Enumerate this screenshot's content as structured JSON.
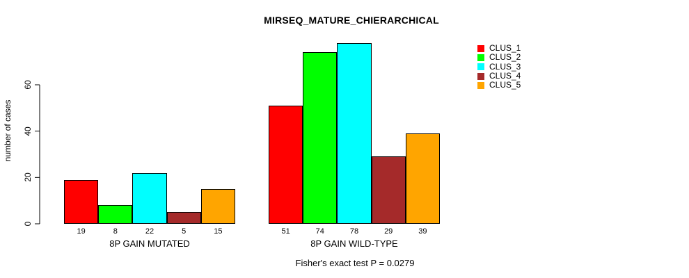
{
  "title": "MIRSEQ_MATURE_CHIERARCHICAL",
  "footer": "Fisher's exact test P = 0.0279",
  "chart_data": {
    "type": "bar",
    "title": "MIRSEQ_MATURE_CHIERARCHICAL",
    "xlabel": "",
    "ylabel": "number of cases",
    "yticks": [
      0,
      20,
      40,
      60
    ],
    "ylim": [
      0,
      80
    ],
    "grid": false,
    "legend_position": "right",
    "series_names": [
      "CLUS_1",
      "CLUS_2",
      "CLUS_3",
      "CLUS_4",
      "CLUS_5"
    ],
    "series_colors": [
      "#FF0000",
      "#00FF00",
      "#00FFFF",
      "#A52A2A",
      "#FFA500"
    ],
    "groups": [
      {
        "label": "8P GAIN MUTATED",
        "values": [
          19,
          8,
          22,
          5,
          15
        ]
      },
      {
        "label": "8P GAIN WILD-TYPE",
        "values": [
          51,
          74,
          78,
          29,
          39
        ]
      }
    ],
    "bar_value_labels": [
      [
        19,
        8,
        22,
        5,
        15
      ],
      [
        51,
        74,
        78,
        29,
        39
      ]
    ],
    "annotation": "Fisher's exact test P = 0.0279"
  },
  "legend": {
    "items": [
      {
        "label": "CLUS_1",
        "color": "#FF0000"
      },
      {
        "label": "CLUS_2",
        "color": "#00FF00"
      },
      {
        "label": "CLUS_3",
        "color": "#00FFFF"
      },
      {
        "label": "CLUS_4",
        "color": "#A52A2A"
      },
      {
        "label": "CLUS_5",
        "color": "#FFA500"
      }
    ]
  },
  "colors": {
    "axis": "#000000",
    "text": "#000000",
    "background": "#FFFFFF"
  }
}
